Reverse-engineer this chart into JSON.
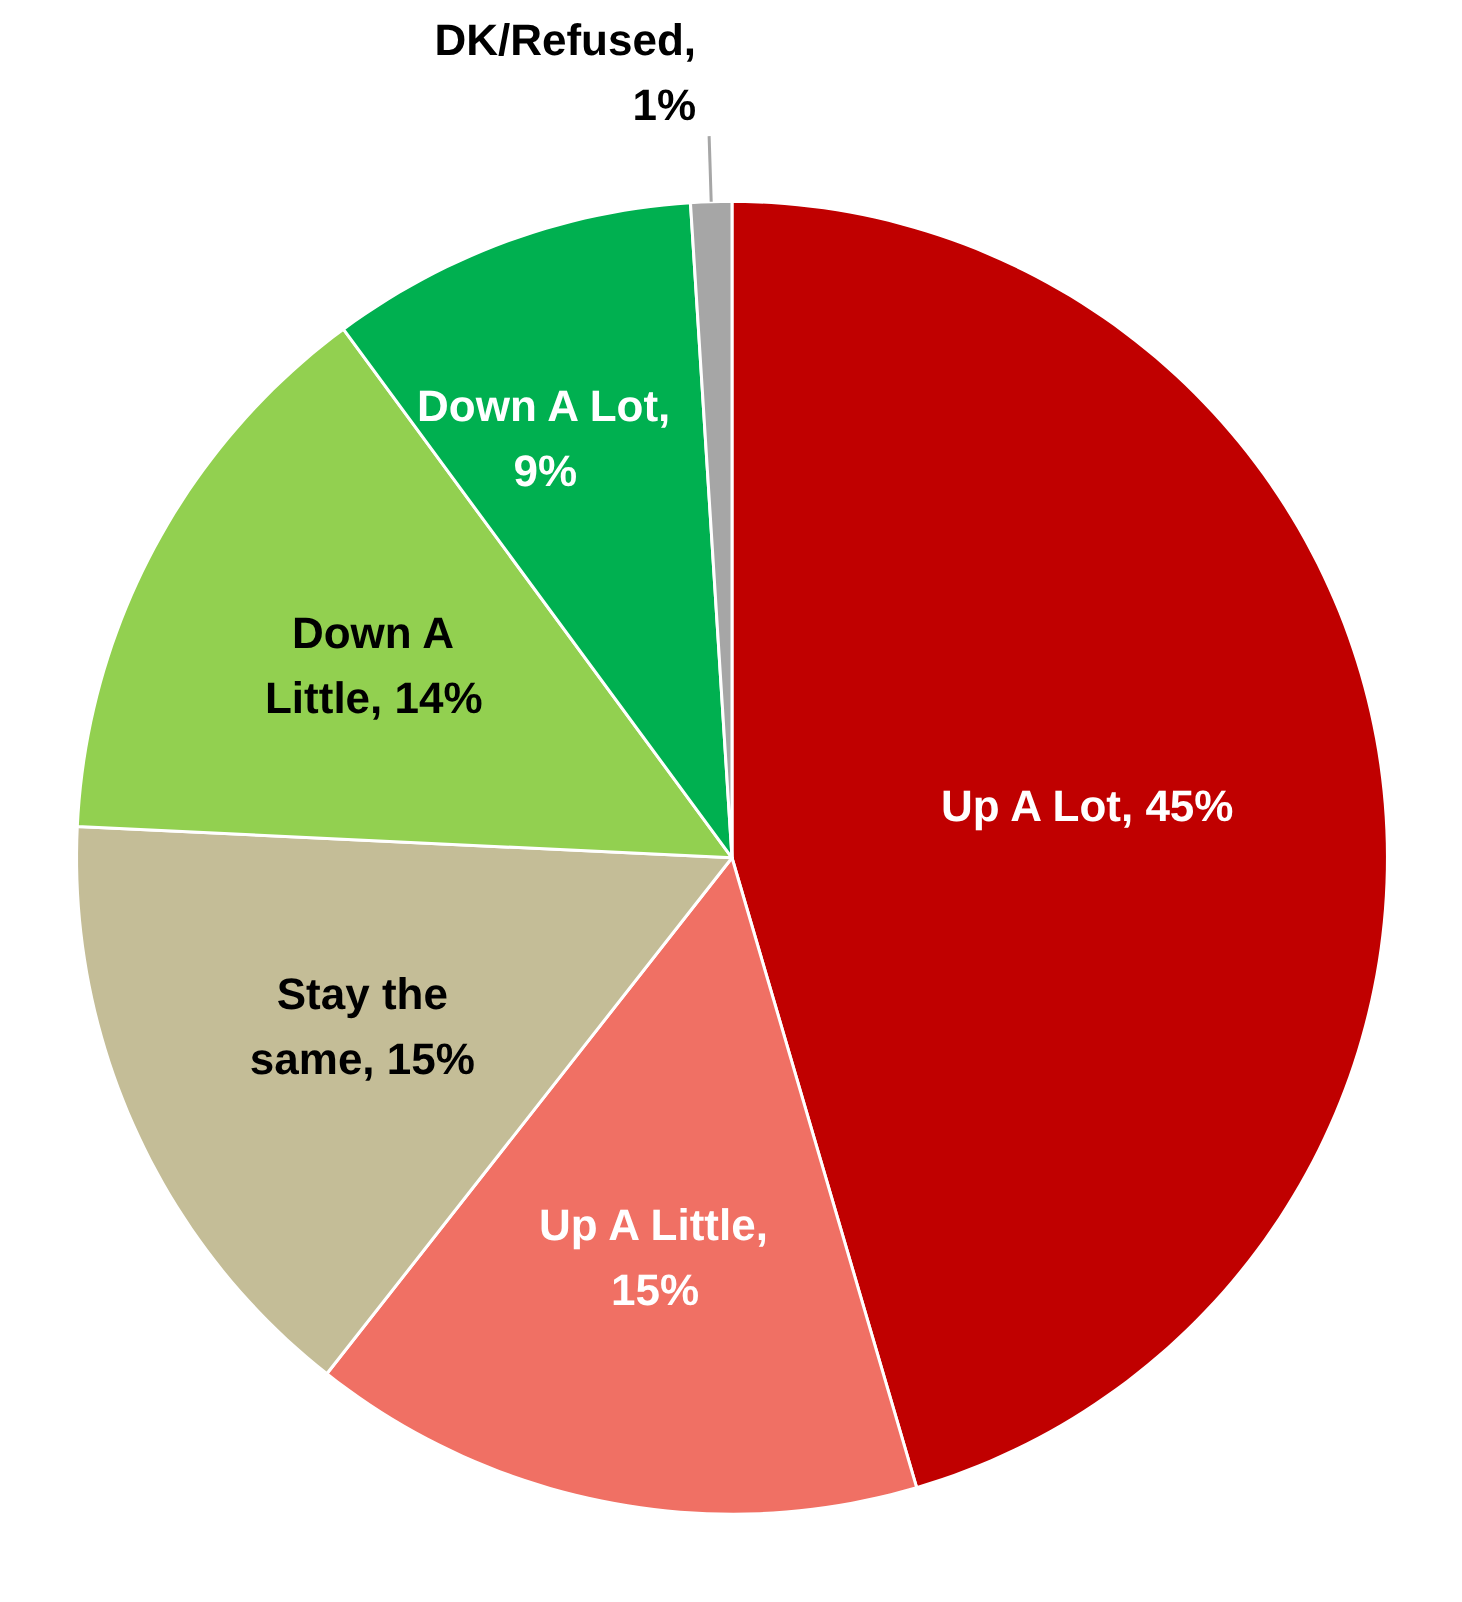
{
  "chart_data": {
    "type": "pie",
    "categories": [
      null,
      null,
      null,
      null,
      null,
      null
    ],
    "values": [
      45,
      15,
      15,
      14,
      9,
      1
    ],
    "value_labels": [
      "Up A Lot, 45%",
      "Up A Little, 15%",
      "Stay the same, 15%",
      "Down A Little, 14%",
      "Down A Lot, 9%",
      "DK/Refused, 1%"
    ],
    "colors": [
      "#c00000",
      "#f07064",
      "#c4bd97",
      "#92d050",
      "#00b050",
      "#a6a6a6"
    ]
  }
}
